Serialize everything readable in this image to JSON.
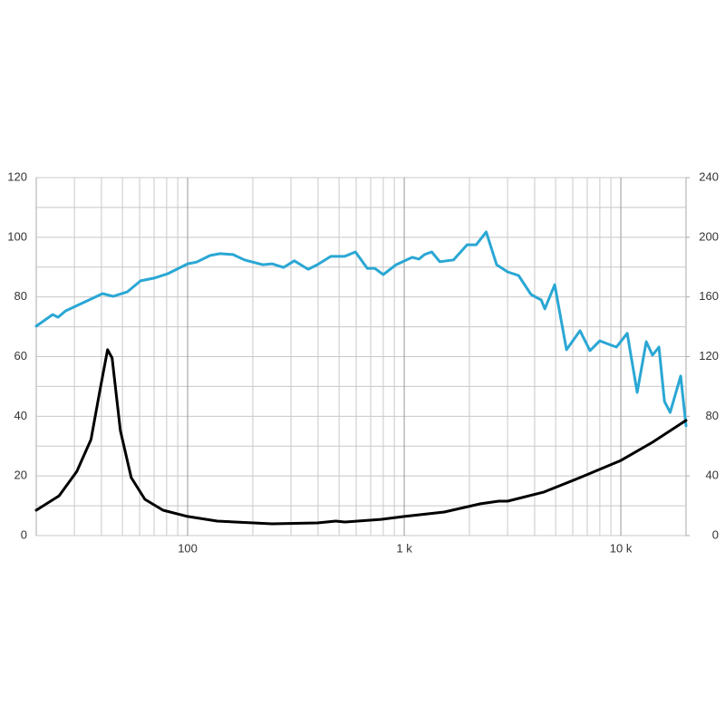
{
  "chart_data": {
    "type": "line",
    "xscale": "log",
    "xlim": [
      20,
      20000
    ],
    "xticks": [
      {
        "value": 100,
        "label": "100"
      },
      {
        "value": 1000,
        "label": "1 k"
      },
      {
        "value": 10000,
        "label": "10 k"
      }
    ],
    "x_minor_ticks": [
      30,
      40,
      50,
      60,
      70,
      80,
      90,
      200,
      300,
      400,
      500,
      600,
      700,
      800,
      900,
      2000,
      3000,
      4000,
      5000,
      6000,
      7000,
      8000,
      9000
    ],
    "ylim": [
      0,
      120
    ],
    "yticks": [
      0,
      20,
      40,
      60,
      80,
      100,
      120
    ],
    "y_minor_ticks": [
      10,
      30,
      50,
      70,
      90,
      110
    ],
    "y2lim": [
      0,
      240
    ],
    "y2ticks": [
      0,
      40,
      80,
      120,
      160,
      200,
      240
    ],
    "grid": true,
    "series": [
      {
        "color": "#2aa7d4",
        "axis": "y",
        "x": [
          20,
          23.8,
          25.2,
          27.3,
          40.5,
          45.3,
          52.6,
          60.6,
          70,
          81,
          100,
          110,
          127,
          141,
          162,
          183,
          222,
          245,
          277,
          311,
          360,
          397,
          458,
          530,
          595,
          675,
          731,
          800,
          917,
          1090,
          1170,
          1240,
          1340,
          1460,
          1690,
          1950,
          2150,
          2390,
          2670,
          3000,
          3370,
          3850,
          4290,
          4460,
          4950,
          5610,
          6480,
          7200,
          8000,
          8820,
          9540,
          10700,
          11900,
          13100,
          14000,
          15000,
          15900,
          16900,
          18900,
          20000
        ],
        "values": [
          70.2,
          74.1,
          73.2,
          75.3,
          81.1,
          80.2,
          81.7,
          85.4,
          86.3,
          87.8,
          91.1,
          91.7,
          93.9,
          94.5,
          94.2,
          92.4,
          90.8,
          91.1,
          89.9,
          92.1,
          89.3,
          90.8,
          93.6,
          93.6,
          95.1,
          89.6,
          89.6,
          87.5,
          90.8,
          93.3,
          92.7,
          94.2,
          95.1,
          91.8,
          92.4,
          97.5,
          97.5,
          101.8,
          90.8,
          88.4,
          87.2,
          80.8,
          79.0,
          76.0,
          84.1,
          62.3,
          68.7,
          62.0,
          65.3,
          64.1,
          63.2,
          67.8,
          48.0,
          65.0,
          60.5,
          63.2,
          45.0,
          41.3,
          53.5,
          36.8
        ]
      },
      {
        "color": "#000000",
        "axis": "y2",
        "x": [
          20,
          25.5,
          30.8,
          35.8,
          39.4,
          42.7,
          44.8,
          48.9,
          54.9,
          63.5,
          77,
          100,
          137,
          245,
          397,
          483,
          530,
          780,
          1000,
          1530,
          2250,
          2730,
          3000,
          4420,
          6480,
          10000,
          14000,
          20000
        ],
        "values": [
          17.0,
          26.7,
          43.1,
          64.4,
          97.8,
          124.6,
          119.1,
          70.5,
          38.9,
          24.3,
          17.0,
          12.8,
          9.7,
          7.9,
          8.5,
          9.7,
          9.1,
          10.9,
          12.8,
          15.8,
          21.3,
          23.1,
          23.1,
          29.2,
          38.9,
          50.4,
          62.6,
          77.2
        ]
      }
    ]
  }
}
